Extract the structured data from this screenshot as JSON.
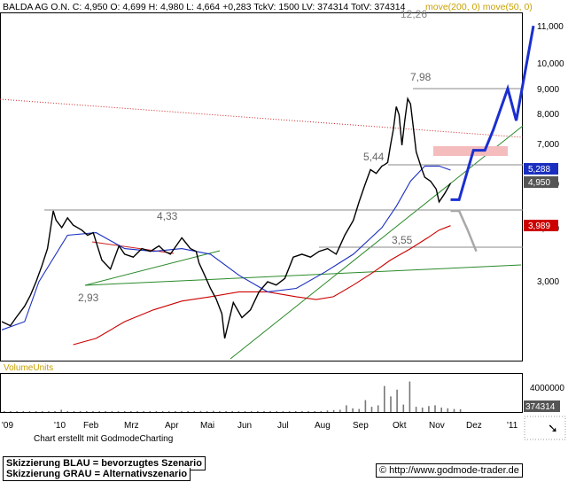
{
  "header": {
    "title": "BALDA AG O.N. C: 4,950 O: 4,699 H: 4,980 L: 4,664 +0,283 TckV: 1500 LV: 374314 TotV: 374314",
    "ma_legend": "move(200, 0) move(50, 0)",
    "ma_legend_color": "#c8a000"
  },
  "footer": {
    "credit": "Chart erstellt mit GodmodeCharting",
    "blue_label": "Skizzierung BLAU = bevorzugtes Szenario",
    "grey_label": "Skizzierung GRAU = Alternativszenario",
    "website": "© http://www.godmode-trader.de"
  },
  "colors": {
    "price": "#000000",
    "ma200": "#cc0000",
    "ma50": "#1a2fc0",
    "scenario_blue": "#1a2fd0",
    "scenario_grey": "#a8a8a8",
    "trendline": "#2a8a2a",
    "resistance_dotted": "#cc2020",
    "zone": "#f4bcbc"
  },
  "chart_data": [
    {
      "type": "line",
      "title": "BALDA AG O.N.",
      "log_scale": true,
      "y_ticks": [
        "11,000",
        "10,000",
        "9,000",
        "8,000",
        "7,000",
        "6,000",
        "5,000",
        "3,000"
      ],
      "x_ticks": [
        "'09",
        "'10",
        "Feb",
        "Mrz",
        "Apr",
        "Mai",
        "Jun",
        "Jul",
        "Aug",
        "Sep",
        "Okt",
        "Nov",
        "Dez",
        "'11"
      ],
      "ylim": [
        2.0,
        12.5
      ],
      "grid": false,
      "price_labels": {
        "last": "4,950",
        "ma50": "5,288",
        "ma200": "3,989"
      },
      "annotations": [
        "7,98",
        "5,44",
        "4,33",
        "3,55",
        "2,93",
        "12,26"
      ],
      "level_values": [
        7.98,
        5.44,
        4.33,
        3.55
      ],
      "series": [
        {
          "name": "Kurs",
          "x_unit": "months since Jan 2009",
          "x": [
            11.7,
            12.0,
            12.2,
            12.5,
            12.7,
            12.9,
            13.1,
            13.3,
            13.4,
            13.5,
            13.6,
            13.8,
            14.0,
            14.2,
            14.5,
            14.7,
            14.9,
            15.2,
            15.5,
            15.8,
            16.0,
            16.3,
            16.6,
            16.9,
            17.2,
            17.4,
            17.6,
            17.8,
            18.0,
            18.3,
            18.5,
            18.6,
            18.8,
            19.0,
            19.2,
            19.4,
            19.5,
            19.8,
            20.1,
            20.4,
            20.7,
            21.0,
            21.3,
            21.6,
            21.9,
            22.2,
            22.5,
            22.8,
            23.1,
            23.4,
            23.7,
            24.0,
            24.2,
            24.4,
            24.6,
            24.8,
            25.0,
            25.1,
            25.2,
            25.3,
            25.4,
            25.5,
            25.6,
            25.7,
            25.8,
            25.9,
            26.0,
            26.2,
            26.4,
            26.5,
            26.7,
            26.9,
            27.0,
            27.2,
            27.4
          ],
          "values": [
            2.45,
            2.4,
            2.5,
            2.65,
            2.8,
            3.0,
            3.25,
            3.55,
            3.9,
            4.3,
            4.1,
            3.95,
            4.15,
            4.0,
            3.9,
            3.8,
            3.85,
            3.35,
            3.2,
            3.6,
            3.45,
            3.4,
            3.55,
            3.5,
            3.6,
            3.5,
            3.45,
            3.6,
            3.75,
            3.55,
            3.5,
            3.3,
            3.1,
            2.9,
            2.75,
            2.55,
            2.25,
            2.7,
            2.5,
            2.6,
            2.85,
            3.0,
            2.95,
            3.05,
            3.4,
            3.45,
            3.4,
            3.5,
            3.55,
            3.45,
            3.8,
            4.1,
            4.5,
            4.9,
            5.3,
            5.2,
            5.4,
            5.44,
            5.5,
            6.0,
            6.5,
            7.3,
            7.0,
            6.0,
            6.8,
            7.6,
            7.4,
            5.8,
            5.3,
            5.1,
            5.0,
            4.8,
            4.5,
            4.7,
            4.95
          ]
        },
        {
          "name": "move(50, 0)",
          "x": [
            11.7,
            12.5,
            13.0,
            14.0,
            15.0,
            16.0,
            17.0,
            18.0,
            19.0,
            20.0,
            21.0,
            22.0,
            23.0,
            24.0,
            25.0,
            25.5,
            26.0,
            26.5,
            27.0,
            27.4
          ],
          "values": [
            2.35,
            2.45,
            3.0,
            3.8,
            3.85,
            3.55,
            3.5,
            3.55,
            3.45,
            3.1,
            2.85,
            2.9,
            3.15,
            3.45,
            3.95,
            4.4,
            5.0,
            5.4,
            5.4,
            5.288
          ]
        },
        {
          "name": "move(200, 0)",
          "x": [
            14.2,
            15.0,
            16.0,
            17.0,
            18.0,
            19.0,
            20.0,
            21.0,
            22.0,
            22.7,
            23.3,
            24.0,
            24.7,
            25.3,
            26.0,
            26.6,
            27.0,
            27.4
          ],
          "values": [
            2.18,
            2.25,
            2.45,
            2.6,
            2.72,
            2.78,
            2.85,
            2.85,
            2.78,
            2.74,
            2.78,
            2.95,
            3.15,
            3.35,
            3.55,
            3.75,
            3.9,
            3.989
          ]
        },
        {
          "name": "Skizzierung BLAU",
          "x": [
            27.4,
            27.7,
            28.2,
            28.6,
            28.9,
            29.4,
            29.7,
            30.3
          ],
          "values": [
            4.55,
            4.55,
            5.85,
            5.85,
            6.5,
            8.0,
            6.8,
            11.0
          ]
        },
        {
          "name": "Skizzierung GRAU",
          "x": [
            27.4,
            27.7,
            28.0,
            28.3
          ],
          "values": [
            4.3,
            4.3,
            3.9,
            3.5
          ]
        }
      ]
    },
    {
      "type": "bar",
      "title": "VolumeUnits",
      "y_ticks": [
        "4000000"
      ],
      "last_value_label": "374314",
      "ylim": [
        0,
        5000000
      ],
      "values": [
        60000,
        80000,
        60000,
        90000,
        70000,
        60000,
        100000,
        70000,
        90000,
        300000,
        120000,
        90000,
        100000,
        80000,
        70000,
        120000,
        90000,
        60000,
        80000,
        70000,
        90000,
        60000,
        70000,
        80000,
        90000,
        70000,
        80000,
        110000,
        90000,
        80000,
        100000,
        140000,
        120000,
        160000,
        90000,
        80000,
        100000,
        60000,
        80000,
        90000,
        80000,
        90000,
        100000,
        70000,
        80000,
        90000,
        80000,
        100000,
        110000,
        120000,
        130000,
        200000,
        260000,
        300000,
        900000,
        500000,
        400000,
        1600000,
        700000,
        900000,
        3500000,
        2100000,
        3000000,
        1000000,
        4100000,
        700000,
        600000,
        800000,
        900000,
        600000,
        500000,
        400000,
        374314
      ]
    }
  ]
}
